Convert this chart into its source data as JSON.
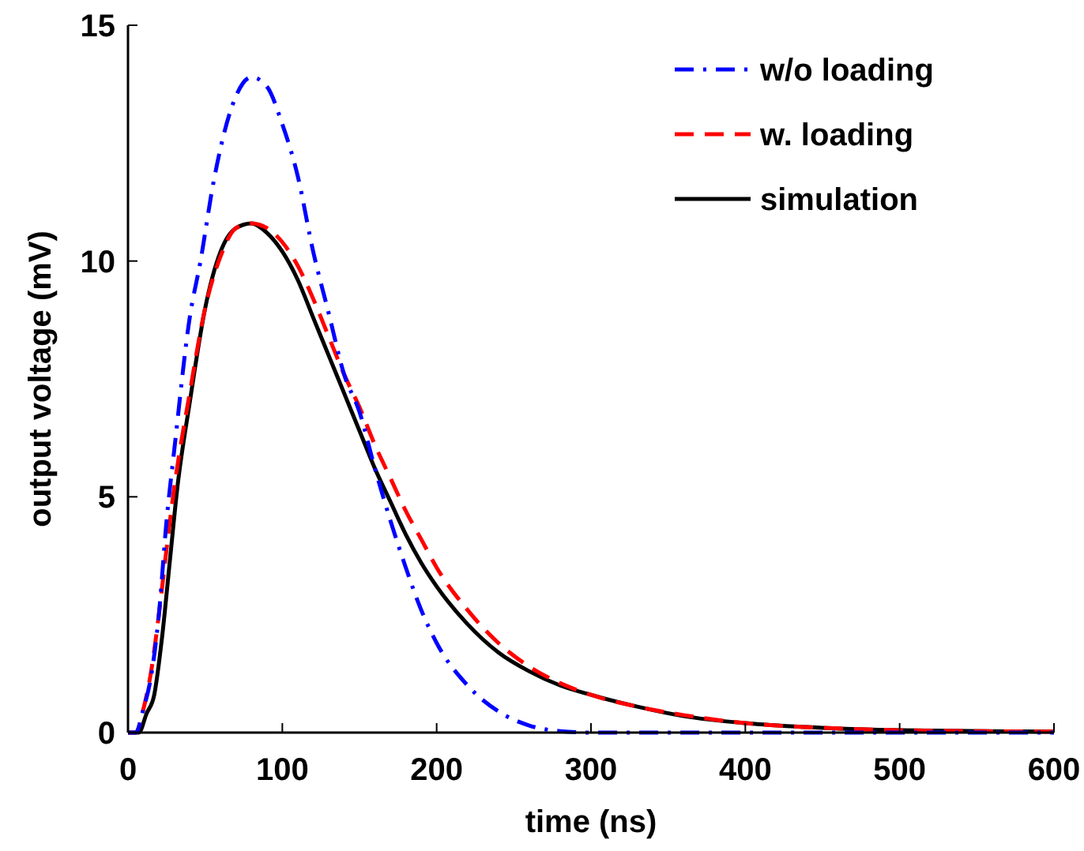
{
  "chart_data": {
    "type": "line",
    "xlabel": "time (ns)",
    "ylabel": "output voltage (mV)",
    "xlim": [
      0,
      600
    ],
    "ylim": [
      0,
      15
    ],
    "xticks": [
      0,
      100,
      200,
      300,
      400,
      500,
      600
    ],
    "yticks": [
      0,
      5,
      10,
      15
    ],
    "grid": false,
    "legend": "top right",
    "series": [
      {
        "name": "w/o loading",
        "color": "#0000ff",
        "line_style": "dashdot",
        "x": [
          0,
          5,
          10,
          15,
          20,
          25,
          30,
          40,
          47,
          55,
          60,
          70,
          80,
          90,
          100,
          110,
          120,
          130,
          140,
          150,
          160,
          170,
          180,
          190,
          200,
          220,
          240,
          260,
          280,
          300,
          400,
          500,
          600
        ],
        "values": [
          0,
          0,
          0.5,
          1.2,
          2.5,
          4.5,
          6,
          8.8,
          10,
          11.6,
          12.4,
          13.5,
          13.9,
          13.7,
          12.9,
          11.8,
          10.2,
          8.9,
          7.6,
          6.8,
          5.6,
          4.5,
          3.5,
          2.6,
          1.9,
          1,
          0.45,
          0.15,
          0.03,
          0,
          0,
          0,
          0
        ]
      },
      {
        "name": "w. loading",
        "color": "#ff0000",
        "line_style": "dashed",
        "x": [
          0,
          5,
          10,
          15,
          20,
          25,
          30,
          40,
          50,
          60,
          70,
          80,
          90,
          100,
          110,
          120,
          130,
          140,
          150,
          160,
          170,
          180,
          190,
          200,
          220,
          240,
          260,
          280,
          300,
          330,
          360,
          400,
          450,
          500,
          550,
          600
        ],
        "values": [
          0,
          0,
          0.5,
          1.3,
          2.5,
          3.9,
          5.2,
          7.2,
          9,
          10.1,
          10.7,
          10.8,
          10.7,
          10.4,
          9.9,
          9.2,
          8.4,
          7.6,
          6.9,
          6.1,
          5.4,
          4.7,
          4.1,
          3.5,
          2.6,
          1.9,
          1.4,
          1.05,
          0.8,
          0.55,
          0.37,
          0.2,
          0.1,
          0.05,
          0.03,
          0.02
        ]
      },
      {
        "name": "simulation",
        "color": "#000000",
        "line_style": "solid",
        "x": [
          0,
          7,
          12,
          17,
          22,
          27,
          32,
          40,
          50,
          60,
          70,
          80,
          90,
          100,
          110,
          120,
          130,
          140,
          150,
          160,
          170,
          180,
          190,
          200,
          220,
          240,
          260,
          280,
          300,
          330,
          360,
          400,
          450,
          500,
          600
        ],
        "values": [
          0,
          0,
          0.4,
          0.8,
          2,
          3.6,
          5.2,
          7,
          9,
          10.2,
          10.7,
          10.8,
          10.6,
          10.2,
          9.6,
          8.8,
          8,
          7.2,
          6.4,
          5.6,
          4.9,
          4.2,
          3.6,
          3.1,
          2.3,
          1.7,
          1.3,
          1,
          0.8,
          0.55,
          0.35,
          0.2,
          0.1,
          0.05,
          0.02
        ]
      }
    ]
  }
}
